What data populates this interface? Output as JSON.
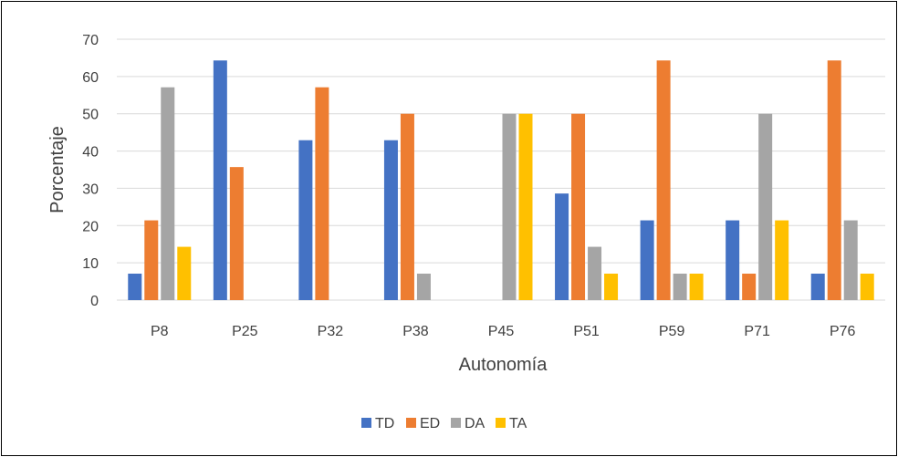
{
  "chart_data": {
    "type": "bar",
    "title": "",
    "xlabel": "Autonomía",
    "ylabel": "Porcentaje",
    "ylim": [
      0,
      70
    ],
    "y_ticks": [
      0,
      10,
      20,
      30,
      40,
      50,
      60,
      70
    ],
    "grid": true,
    "legend_position": "bottom",
    "categories": [
      "P8",
      "P25",
      "P32",
      "P38",
      "P45",
      "P51",
      "P59",
      "P71",
      "P76"
    ],
    "series": [
      {
        "name": "TD",
        "color": "#4472C4",
        "values": [
          7.1,
          64.3,
          42.9,
          42.9,
          0,
          28.6,
          21.4,
          21.4,
          7.1
        ]
      },
      {
        "name": "ED",
        "color": "#ED7D31",
        "values": [
          21.4,
          35.7,
          57.1,
          50,
          0,
          50,
          64.3,
          7.1,
          64.3
        ]
      },
      {
        "name": "DA",
        "color": "#A5A5A5",
        "values": [
          57.1,
          0,
          0,
          7.1,
          50,
          14.3,
          7.1,
          50,
          21.4
        ]
      },
      {
        "name": "TA",
        "color": "#FFC000",
        "values": [
          14.3,
          0,
          0,
          0,
          50,
          7.1,
          7.1,
          21.4,
          7.1
        ]
      }
    ]
  }
}
